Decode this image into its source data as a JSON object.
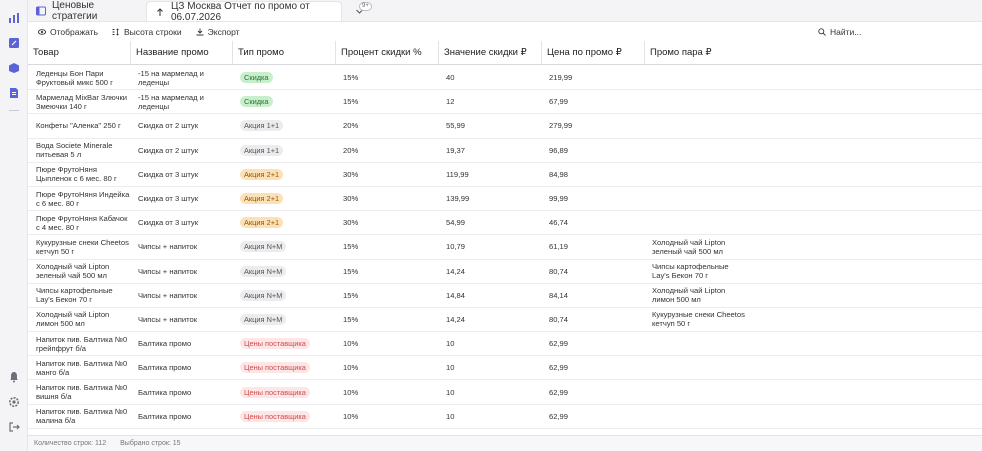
{
  "tabs": [
    {
      "label": "Ценовые стратегии",
      "icon": "window-icon",
      "active": false
    },
    {
      "label": "ЦЗ Москва Отчет по промо от 06.07.2026",
      "icon": "upload-icon",
      "active": true
    }
  ],
  "tab_overflow_count": "9+",
  "toolbar": {
    "display_label": "Отображать",
    "row_height_label": "Высота строки",
    "export_label": "Экспорт",
    "search_placeholder": "Найти..."
  },
  "columns": [
    "Товар",
    "Название промо",
    "Тип промо",
    "Процент скидки %",
    "Значение скидки ₽",
    "Цена по промо ₽",
    "Промо пара ₽"
  ],
  "rows": [
    {
      "product": "Леденцы Бон Пари Фруктовый микс 500 г",
      "promo_name": "-15 на мармелад и леденцы",
      "promo_type": "Скидка",
      "type_color": "green",
      "percent": "15%",
      "discount": "40",
      "price": "219,99",
      "pair": ""
    },
    {
      "product": "Мармелад MixBar Злючки Змеючки 140 г",
      "promo_name": "-15 на мармелад и леденцы",
      "promo_type": "Скидка",
      "type_color": "green",
      "percent": "15%",
      "discount": "12",
      "price": "67,99",
      "pair": ""
    },
    {
      "product": "Конфеты \"Аленка\" 250 г",
      "promo_name": "Скидка от 2 штук",
      "promo_type": "Акция 1+1",
      "type_color": "gray",
      "percent": "20%",
      "discount": "55,99",
      "price": "279,99",
      "pair": ""
    },
    {
      "product": "Вода Societe Minerale питьевая 5 л",
      "promo_name": "Скидка от 2 штук",
      "promo_type": "Акция 1+1",
      "type_color": "gray",
      "percent": "20%",
      "discount": "19,37",
      "price": "96,89",
      "pair": ""
    },
    {
      "product": "Пюре ФрутоНяня Цыпленок с 6 мес. 80 г",
      "promo_name": "Скидка от 3 штук",
      "promo_type": "Акция 2+1",
      "type_color": "orange",
      "percent": "30%",
      "discount": "119,99",
      "price": "84,98",
      "pair": ""
    },
    {
      "product": "Пюре ФрутоНяня Индейка с 6 мес. 80 г",
      "promo_name": "Скидка от 3 штук",
      "promo_type": "Акция 2+1",
      "type_color": "orange",
      "percent": "30%",
      "discount": "139,99",
      "price": "99,99",
      "pair": ""
    },
    {
      "product": "Пюре ФрутоНяня Кабачок с 4 мес. 80 г",
      "promo_name": "Скидка от 3 штук",
      "promo_type": "Акция 2+1",
      "type_color": "orange",
      "percent": "30%",
      "discount": "54,99",
      "price": "46,74",
      "pair": ""
    },
    {
      "product": "Кукурузные снеки Cheetos кетчуп 50 г",
      "promo_name": "Чипсы + напиток",
      "promo_type": "Акция N+M",
      "type_color": "gray",
      "percent": "15%",
      "discount": "10,79",
      "price": "61,19",
      "pair": "Холодный чай Lipton зеленый чай 500 мл"
    },
    {
      "product": "Холодный чай Lipton зеленый чай 500 мл",
      "promo_name": "Чипсы + напиток",
      "promo_type": "Акция N+M",
      "type_color": "gray",
      "percent": "15%",
      "discount": "14,24",
      "price": "80,74",
      "pair": "Чипсы картофельные Lay's Бекон 70 г"
    },
    {
      "product": "Чипсы картофельные Lay's Бекон 70 г",
      "promo_name": "Чипсы + напиток",
      "promo_type": "Акция N+M",
      "type_color": "gray",
      "percent": "15%",
      "discount": "14,84",
      "price": "84,14",
      "pair": "Холодный чай Lipton лимон 500 мл"
    },
    {
      "product": "Холодный чай Lipton лимон 500 мл",
      "promo_name": "Чипсы + напиток",
      "promo_type": "Акция N+M",
      "type_color": "gray",
      "percent": "15%",
      "discount": "14,24",
      "price": "80,74",
      "pair": "Кукурузные снеки Cheetos кетчуп 50 г"
    },
    {
      "product": "Напиток пив. Балтика №0 грейпфрут б/а",
      "promo_name": "Балтика промо",
      "promo_type": "Цены поставщика",
      "type_color": "red",
      "percent": "10%",
      "discount": "10",
      "price": "62,99",
      "pair": ""
    },
    {
      "product": "Напиток пив. Балтика №0 манго б/а",
      "promo_name": "Балтика промо",
      "promo_type": "Цены поставщика",
      "type_color": "red",
      "percent": "10%",
      "discount": "10",
      "price": "62,99",
      "pair": ""
    },
    {
      "product": "Напиток пив. Балтика №0 вишня б/а",
      "promo_name": "Балтика промо",
      "promo_type": "Цены поставщика",
      "type_color": "red",
      "percent": "10%",
      "discount": "10",
      "price": "62,99",
      "pair": ""
    },
    {
      "product": "Напиток пив. Балтика №0 малина б/а",
      "promo_name": "Балтика промо",
      "promo_type": "Цены поставщика",
      "type_color": "red",
      "percent": "10%",
      "discount": "10",
      "price": "62,99",
      "pair": ""
    }
  ],
  "footer": {
    "row_count": "Количество строк: 112",
    "selected_count": "Выбрано строк: 15"
  },
  "rail_icons": [
    "bar-chart-icon",
    "edit-icon",
    "box-icon",
    "document-icon",
    "bell-icon",
    "settings-icon",
    "logout-icon"
  ],
  "colors": {
    "accent": "#5b63d6",
    "pill_green": "#c7efcb",
    "pill_orange": "#fde1b6",
    "pill_red": "#fde6e6",
    "pill_gray": "#ececef"
  }
}
